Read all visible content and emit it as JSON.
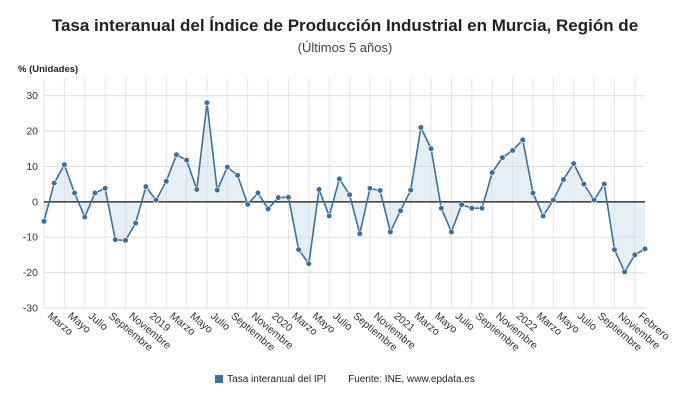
{
  "chart_data": {
    "type": "area",
    "title": "Tasa interanual del Índice de Producción Industrial en Murcia, Región de",
    "subtitle": "(Últimos 5 años)",
    "ylabel": "% (Unidades)",
    "ylim": [
      -30,
      35
    ],
    "yticks": [
      30,
      20,
      10,
      0,
      -10,
      -20,
      -30
    ],
    "grid": true,
    "legend_position": "bottom-center",
    "x_labels": [
      "Marzo",
      "Mayo",
      "Julio",
      "Septiembre",
      "Noviembre",
      "2019",
      "Marzo",
      "Mayo",
      "Julio",
      "Septiembre",
      "Noviembre",
      "2020",
      "Marzo",
      "Mayo",
      "Julio",
      "Septiembre",
      "Noviembre",
      "2021",
      "Marzo",
      "Mayo",
      "Julio",
      "Septiembre",
      "Noviembre",
      "2022",
      "Marzo",
      "Mayo",
      "Julio",
      "Septiembre",
      "Noviembre",
      "Febrero"
    ],
    "series": [
      {
        "name": "Tasa interanual del IPI",
        "color": "#3d6f9c",
        "values": [
          -5.5,
          5.3,
          10.5,
          2.5,
          -4.3,
          2.5,
          3.8,
          -10.7,
          -10.9,
          -6.0,
          4.3,
          0.5,
          5.8,
          13.3,
          11.8,
          3.5,
          28.0,
          3.3,
          9.8,
          7.5,
          -0.7,
          2.5,
          -2.0,
          1.2,
          1.3,
          -13.5,
          -17.5,
          3.5,
          -4.0,
          6.5,
          2.0,
          -9.0,
          3.8,
          3.2,
          -8.5,
          -2.5,
          3.3,
          21.0,
          15.0,
          -1.8,
          -8.5,
          -0.8,
          -1.8,
          -1.8,
          8.3,
          12.5,
          14.5,
          17.5,
          2.5,
          -4.0,
          0.5,
          6.3,
          10.8,
          5.0,
          0.5,
          5.0,
          -13.5,
          -19.8,
          -15.0,
          -13.3
        ]
      }
    ]
  },
  "legend": {
    "series_label": "Tasa interanual del IPI",
    "source": "Fuente: INE, www.epdata.es"
  }
}
